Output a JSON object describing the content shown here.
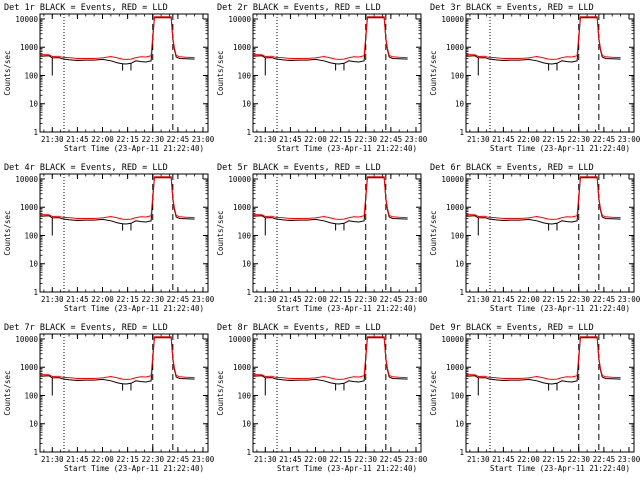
{
  "chart_data": [
    {
      "type": "line",
      "title": "Det 1r BLACK = Events, RED = LLD",
      "xlabel": "Start Time (23-Apr-11 21:22:40)",
      "ylabel": "Counts/sec"
    },
    {
      "type": "line",
      "title": "Det 2r BLACK = Events, RED = LLD",
      "xlabel": "Start Time (23-Apr-11 21:22:40)",
      "ylabel": "Counts/sec"
    },
    {
      "type": "line",
      "title": "Det 3r BLACK = Events, RED = LLD",
      "xlabel": "Start Time (23-Apr-11 21:22:40)",
      "ylabel": "Counts/sec"
    },
    {
      "type": "line",
      "title": "Det 4r BLACK = Events, RED = LLD",
      "xlabel": "Start Time (23-Apr-11 21:22:40)",
      "ylabel": "Counts/sec"
    },
    {
      "type": "line",
      "title": "Det 5r BLACK = Events, RED = LLD",
      "xlabel": "Start Time (23-Apr-11 21:22:40)",
      "ylabel": "Counts/sec"
    },
    {
      "type": "line",
      "title": "Det 6r BLACK = Events, RED = LLD",
      "xlabel": "Start Time (23-Apr-11 21:22:40)",
      "ylabel": "Counts/sec"
    },
    {
      "type": "line",
      "title": "Det 7r BLACK = Events, RED = LLD",
      "xlabel": "Start Time (23-Apr-11 21:22:40)",
      "ylabel": "Counts/sec"
    },
    {
      "type": "line",
      "title": "Det 8r BLACK = Events, RED = LLD",
      "xlabel": "Start Time (23-Apr-11 21:22:40)",
      "ylabel": "Counts/sec"
    },
    {
      "type": "line",
      "title": "Det 9r BLACK = Events, RED = LLD",
      "xlabel": "Start Time (23-Apr-11 21:22:40)",
      "ylabel": "Counts/sec"
    }
  ],
  "shared": {
    "y_scale": "log",
    "ylim": [
      1,
      15000
    ],
    "y_ticks": [
      1,
      10,
      100,
      1000,
      10000
    ],
    "y_tick_labels": [
      "1",
      "10",
      "100",
      "1000",
      "10000"
    ],
    "xlim": [
      "21:22:40",
      "23:03"
    ],
    "x_tick_labels": [
      "21:30",
      "21:45",
      "22:00",
      "22:15",
      "22:30",
      "22:45",
      "23:00"
    ],
    "x_tick_times": [
      "21:30",
      "21:45",
      "22:00",
      "22:15",
      "22:30",
      "22:45",
      "23:00"
    ],
    "dotted_vlines": [
      "21:37"
    ],
    "dashed_vlines": [
      "22:30",
      "22:42"
    ],
    "events_color": "#000000",
    "lld_color": "#ff0000",
    "x": [
      "21:23",
      "21:28",
      "21:30",
      "21:34",
      "21:36",
      "21:40",
      "21:45",
      "21:50",
      "21:55",
      "22:00",
      "22:05",
      "22:09",
      "22:12",
      "22:14",
      "22:17",
      "22:20",
      "22:23",
      "22:26",
      "22:29",
      "22:31",
      "22:34",
      "22:36",
      "22:38",
      "22:39",
      "22:41",
      "22:42",
      "22:43",
      "22:44",
      "22:46",
      "22:50",
      "22:55"
    ],
    "events_cps": [
      480,
      500,
      420,
      430,
      390,
      360,
      340,
      350,
      350,
      370,
      330,
      280,
      260,
      255,
      270,
      330,
      310,
      300,
      330,
      11000,
      11000,
      11000,
      11000,
      11000,
      11000,
      2000,
      800,
      450,
      400,
      390,
      380
    ],
    "lld_cps": [
      550,
      540,
      470,
      480,
      440,
      430,
      400,
      400,
      400,
      420,
      470,
      420,
      380,
      370,
      380,
      430,
      460,
      450,
      500,
      12000,
      12000,
      12000,
      12000,
      12000,
      12000,
      2200,
      900,
      520,
      460,
      440,
      430
    ],
    "dips": [
      {
        "at": "21:30",
        "to_cps": 100
      },
      {
        "at": "22:12",
        "to_cps": 150
      },
      {
        "at": "22:17",
        "to_cps": 150
      }
    ]
  }
}
